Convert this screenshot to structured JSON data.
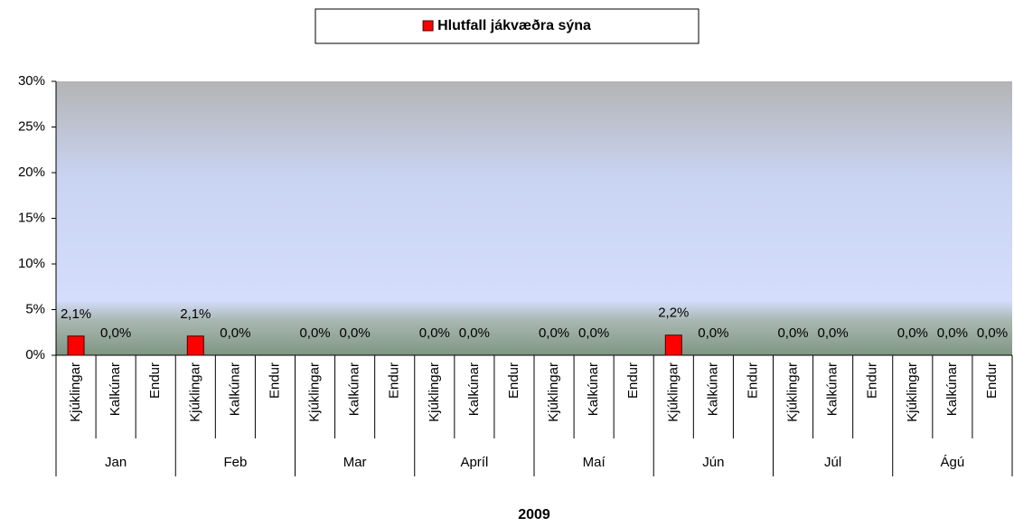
{
  "chart_data": {
    "type": "bar",
    "x_title": "2009",
    "groups": [
      "Jan",
      "Feb",
      "Mar",
      "Apríl",
      "Maí",
      "Jún",
      "Júl",
      "Ágú"
    ],
    "categories": [
      "Kjúklingar",
      "Kalkúnar",
      "Endur",
      "Kjúklingar",
      "Kalkúnar",
      "Endur",
      "Kjúklingar",
      "Kalkúnar",
      "Endur",
      "Kjúklingar",
      "Kalkúnar",
      "Endur",
      "Kjúklingar",
      "Kalkúnar",
      "Endur",
      "Kjúklingar",
      "Kalkúnar",
      "Endur",
      "Kjúklingar",
      "Kalkúnar",
      "Endur",
      "Kjúklingar",
      "Kalkúnar",
      "Endur"
    ],
    "series": [
      {
        "name": "Hlutfall jákvæðra sýna",
        "color": "#ff0000",
        "values": [
          2.1,
          0,
          null,
          2.1,
          0,
          null,
          0,
          0,
          null,
          0,
          0,
          null,
          0,
          0,
          null,
          2.2,
          0,
          null,
          0,
          0,
          null,
          0,
          0,
          0
        ],
        "value_labels": [
          "2,1%",
          "0,0%",
          null,
          "2,1%",
          "0,0%",
          null,
          "0,0%",
          "0,0%",
          null,
          "0,0%",
          "0,0%",
          null,
          "0,0%",
          "0,0%",
          null,
          "2,2%",
          "0,0%",
          null,
          "0,0%",
          "0,0%",
          null,
          "0,0%",
          "0,0%",
          "0,0%"
        ]
      }
    ],
    "ylim": [
      0,
      30
    ],
    "yticks": [
      {
        "value": 0,
        "label": "0%"
      },
      {
        "value": 5,
        "label": "5%"
      },
      {
        "value": 10,
        "label": "10%"
      },
      {
        "value": 15,
        "label": "15%"
      },
      {
        "value": 20,
        "label": "20%"
      },
      {
        "value": 25,
        "label": "25%"
      },
      {
        "value": 30,
        "label": "30%"
      }
    ],
    "legend": "top"
  }
}
